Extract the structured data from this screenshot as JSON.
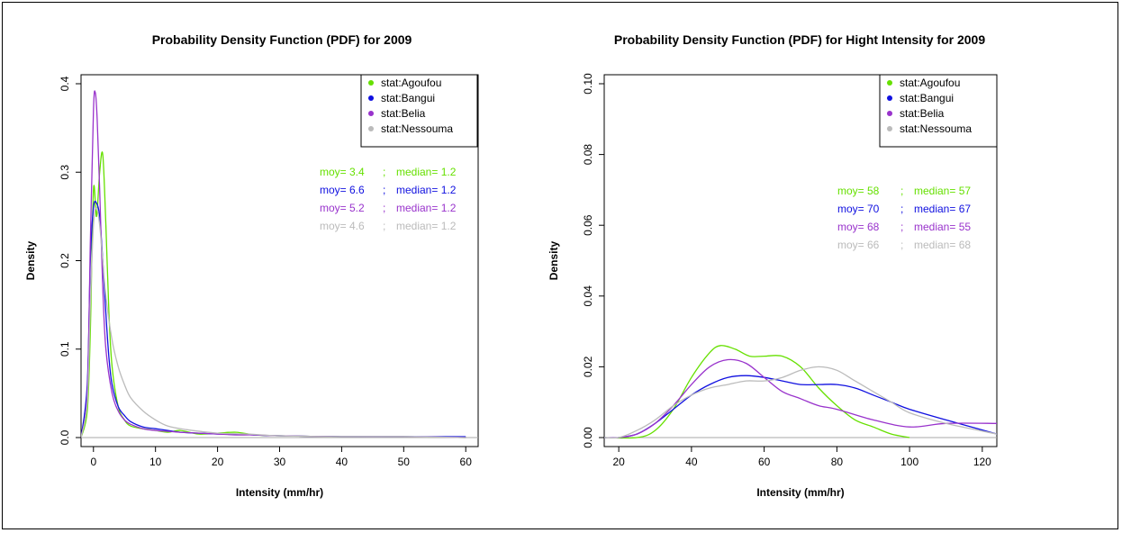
{
  "chart_data": [
    {
      "type": "line",
      "title": "Probability Density Function (PDF) for 2009",
      "xlabel": "Intensity (mm/hr)",
      "ylabel": "Density",
      "xlim": [
        -2,
        62
      ],
      "ylim": [
        0,
        0.4
      ],
      "x_ticks": [
        "0",
        "10",
        "20",
        "30",
        "40",
        "50",
        "60"
      ],
      "y_ticks": [
        "0.0",
        "0.1",
        "0.2",
        "0.3",
        "0.4"
      ],
      "legend_position": "top-right",
      "legend": [
        "stat:Agoufou",
        "stat:Bangui",
        "stat:Belia",
        "stat:Nessouma"
      ],
      "series": [
        {
          "name": "stat:Agoufou",
          "color": "#66e000",
          "x": [
            -2,
            -1,
            -0.5,
            0,
            0.5,
            1,
            1.5,
            2,
            2.5,
            3,
            4,
            5,
            6,
            8,
            10,
            12,
            14,
            17,
            20,
            23,
            26,
            30,
            40,
            50,
            60
          ],
          "y": [
            0,
            0.03,
            0.12,
            0.28,
            0.25,
            0.3,
            0.32,
            0.24,
            0.14,
            0.08,
            0.035,
            0.02,
            0.013,
            0.01,
            0.008,
            0.006,
            0.008,
            0.004,
            0.005,
            0.006,
            0.003,
            0.002,
            0.001,
            0.001,
            0
          ]
        },
        {
          "name": "stat:Bangui",
          "color": "#1010e0",
          "x": [
            -2,
            -1,
            -0.5,
            0,
            0.5,
            1,
            1.5,
            2,
            2.5,
            3,
            4,
            5,
            6,
            8,
            10,
            12,
            14,
            17,
            20,
            23,
            26,
            30,
            40,
            50,
            60
          ],
          "y": [
            0,
            0.06,
            0.2,
            0.26,
            0.265,
            0.25,
            0.2,
            0.14,
            0.09,
            0.06,
            0.035,
            0.025,
            0.018,
            0.012,
            0.01,
            0.008,
            0.006,
            0.005,
            0.004,
            0.004,
            0.003,
            0.002,
            0.001,
            0.001,
            0.001
          ]
        },
        {
          "name": "stat:Belia",
          "color": "#9933cc",
          "x": [
            -2,
            -1,
            -0.5,
            0,
            0.3,
            0.6,
            1,
            1.5,
            2,
            3,
            4,
            5,
            6,
            8,
            10,
            12,
            14,
            17,
            20,
            23,
            26,
            30,
            40,
            50,
            60
          ],
          "y": [
            0,
            0.05,
            0.22,
            0.37,
            0.39,
            0.36,
            0.28,
            0.17,
            0.1,
            0.05,
            0.03,
            0.02,
            0.015,
            0.01,
            0.008,
            0.007,
            0.006,
            0.005,
            0.004,
            0.003,
            0.003,
            0.002,
            0.001,
            0.001,
            0
          ]
        },
        {
          "name": "stat:Nessouma",
          "color": "#bbbbbb",
          "x": [
            -2,
            -1,
            -0.5,
            0,
            0.5,
            1,
            1.5,
            2,
            3,
            4,
            5,
            6,
            8,
            10,
            12,
            15,
            20,
            25,
            30,
            40,
            50,
            60
          ],
          "y": [
            0,
            0.04,
            0.15,
            0.24,
            0.26,
            0.24,
            0.2,
            0.16,
            0.11,
            0.08,
            0.06,
            0.045,
            0.03,
            0.02,
            0.013,
            0.009,
            0.005,
            0.004,
            0.002,
            0.001,
            0.001,
            0
          ]
        }
      ],
      "stats": [
        {
          "moy": "moy= 3.4",
          "sep": ";",
          "median": "median= 1.2",
          "color": "#66e000"
        },
        {
          "moy": "moy= 6.6",
          "sep": ";",
          "median": "median= 1.2",
          "color": "#1010e0"
        },
        {
          "moy": "moy= 5.2",
          "sep": ";",
          "median": "median= 1.2",
          "color": "#9933cc"
        },
        {
          "moy": "moy= 4.6",
          "sep": ";",
          "median": "median= 1.2",
          "color": "#bbbbbb"
        }
      ]
    },
    {
      "type": "line",
      "title": "Probability Density Function (PDF) for Hight Intensity for 2009",
      "xlabel": "Intensity (mm/hr)",
      "ylabel": "Density",
      "xlim": [
        16,
        124
      ],
      "ylim": [
        0,
        0.1
      ],
      "x_ticks": [
        "20",
        "40",
        "60",
        "80",
        "100",
        "120"
      ],
      "y_ticks": [
        "0.00",
        "0.02",
        "0.04",
        "0.06",
        "0.08",
        "0.10"
      ],
      "legend_position": "top-right",
      "legend": [
        "stat:Agoufou",
        "stat:Bangui",
        "stat:Belia",
        "stat:Nessouma"
      ],
      "series": [
        {
          "name": "stat:Agoufou",
          "color": "#66e000",
          "x": [
            16,
            25,
            30,
            35,
            40,
            45,
            48,
            52,
            56,
            60,
            65,
            70,
            75,
            80,
            85,
            90,
            95,
            100
          ],
          "y": [
            0,
            0,
            0.002,
            0.008,
            0.017,
            0.024,
            0.026,
            0.025,
            0.023,
            0.023,
            0.023,
            0.02,
            0.014,
            0.009,
            0.005,
            0.003,
            0.001,
            0
          ]
        },
        {
          "name": "stat:Bangui",
          "color": "#1010e0",
          "x": [
            16,
            20,
            25,
            30,
            35,
            40,
            45,
            50,
            55,
            60,
            65,
            70,
            75,
            80,
            85,
            90,
            95,
            100,
            110,
            124
          ],
          "y": [
            0,
            0,
            0.001,
            0.004,
            0.008,
            0.012,
            0.015,
            0.017,
            0.0175,
            0.017,
            0.016,
            0.015,
            0.015,
            0.015,
            0.014,
            0.012,
            0.01,
            0.008,
            0.005,
            0.001
          ]
        },
        {
          "name": "stat:Belia",
          "color": "#9933cc",
          "x": [
            16,
            20,
            25,
            30,
            35,
            40,
            45,
            50,
            55,
            60,
            65,
            70,
            75,
            80,
            90,
            100,
            110,
            124
          ],
          "y": [
            0,
            0,
            0.001,
            0.004,
            0.009,
            0.015,
            0.02,
            0.022,
            0.021,
            0.017,
            0.013,
            0.011,
            0.009,
            0.008,
            0.005,
            0.003,
            0.004,
            0.004
          ]
        },
        {
          "name": "stat:Nessouma",
          "color": "#bbbbbb",
          "x": [
            16,
            20,
            25,
            30,
            35,
            40,
            45,
            50,
            55,
            60,
            65,
            70,
            75,
            80,
            85,
            90,
            95,
            100,
            110,
            124
          ],
          "y": [
            0,
            0,
            0.002,
            0.005,
            0.009,
            0.012,
            0.014,
            0.015,
            0.016,
            0.016,
            0.017,
            0.019,
            0.02,
            0.019,
            0.016,
            0.013,
            0.01,
            0.007,
            0.004,
            0.001
          ]
        }
      ],
      "stats": [
        {
          "moy": "moy= 58",
          "sep": ";",
          "median": "median= 57",
          "color": "#66e000"
        },
        {
          "moy": "moy= 70",
          "sep": ";",
          "median": "median= 67",
          "color": "#1010e0"
        },
        {
          "moy": "moy= 68",
          "sep": ";",
          "median": "median= 55",
          "color": "#9933cc"
        },
        {
          "moy": "moy= 66",
          "sep": ";",
          "median": "median= 68",
          "color": "#bbbbbb"
        }
      ]
    }
  ]
}
